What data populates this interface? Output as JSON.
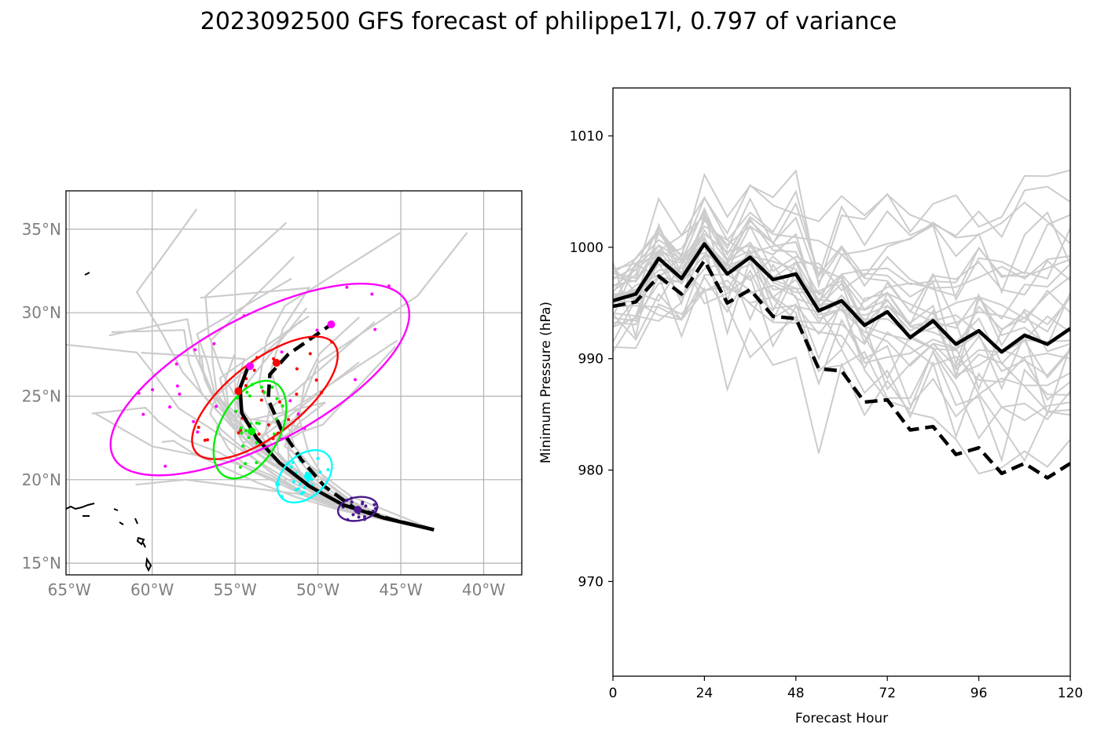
{
  "title": "2023092500 GFS forecast of philippe17l, 0.797 of variance",
  "colors": {
    "ensemble": "#cccccc",
    "mean": "#000000",
    "grid": "#b0b0b0",
    "map_tick": "#808080",
    "cluster_magenta": "#ff00ff",
    "cluster_red": "#ff0000",
    "cluster_green": "#00ee00",
    "cluster_cyan": "#00ffff",
    "cluster_purple": "#4b1a8c"
  },
  "chart_data": [
    {
      "type": "map",
      "lon_ticks": [
        "65°W",
        "60°W",
        "55°W",
        "50°W",
        "45°W",
        "40°W"
      ],
      "lat_ticks": [
        "15°N",
        "20°N",
        "25°N",
        "30°N",
        "35°N"
      ],
      "lon_range": [
        -65.2,
        -37.7
      ],
      "lat_range": [
        14.3,
        37.3
      ],
      "mean_track_solid": [
        [
          -43,
          17
        ],
        [
          -46,
          17.7
        ],
        [
          -48.5,
          18.5
        ],
        [
          -50.5,
          19.6
        ],
        [
          -52.3,
          21
        ],
        [
          -53.7,
          22.5
        ],
        [
          -54.6,
          24
        ],
        [
          -54.7,
          25.5
        ],
        [
          -54.2,
          26.8
        ]
      ],
      "mean_track_dashed": [
        [
          -43,
          17
        ],
        [
          -45.5,
          17.6
        ],
        [
          -47.8,
          18.3
        ],
        [
          -49.6,
          19.6
        ],
        [
          -51,
          21.2
        ],
        [
          -52.2,
          23
        ],
        [
          -53,
          24.8
        ],
        [
          -52.9,
          26.3
        ],
        [
          -51.8,
          27.5
        ],
        [
          -49.2,
          29.3
        ]
      ],
      "ellipses": [
        {
          "color": "magenta",
          "center": [
            -53.5,
            26.0
          ],
          "a": 10.0,
          "b": 3.8,
          "angle": 28
        },
        {
          "color": "red",
          "center": [
            -53.2,
            24.9
          ],
          "a": 5.3,
          "b": 2.2,
          "angle": 38
        },
        {
          "color": "green",
          "center": [
            -54.1,
            23.0
          ],
          "a": 3.2,
          "b": 1.8,
          "angle": 62
        },
        {
          "color": "cyan",
          "center": [
            -50.8,
            20.2
          ],
          "a": 1.9,
          "b": 1.25,
          "angle": 42
        },
        {
          "color": "purple",
          "center": [
            -47.6,
            18.25
          ],
          "a": 1.2,
          "b": 0.7,
          "angle": 10
        }
      ]
    },
    {
      "type": "line",
      "xlabel": "Forecast Hour",
      "ylabel": "Minimum Pressure (hPa)",
      "xlim": [
        0,
        120
      ],
      "ylim": [
        961.5,
        1014.3
      ],
      "xticks": [
        0,
        24,
        48,
        72,
        96,
        120
      ],
      "yticks": [
        970,
        980,
        990,
        1000,
        1010
      ],
      "x": [
        0,
        6,
        12,
        18,
        24,
        30,
        36,
        42,
        48,
        54,
        60,
        66,
        72,
        78,
        84,
        90,
        96,
        102,
        108,
        114,
        120
      ],
      "series": [
        {
          "style": "solid-mean",
          "values": [
            995.2,
            995.8,
            999.0,
            997.2,
            1000.3,
            997.6,
            999.1,
            997.1,
            997.6,
            994.3,
            995.2,
            993.0,
            994.2,
            991.9,
            993.4,
            991.3,
            992.5,
            990.6,
            992.1,
            991.3,
            992.7
          ]
        },
        {
          "style": "dashed-mean",
          "values": [
            994.7,
            995.1,
            997.4,
            995.8,
            998.8,
            995.0,
            996.2,
            993.8,
            993.6,
            989.1,
            988.9,
            986.1,
            986.3,
            983.6,
            983.9,
            981.4,
            982.0,
            979.7,
            980.6,
            979.3,
            980.6
          ]
        }
      ]
    }
  ]
}
